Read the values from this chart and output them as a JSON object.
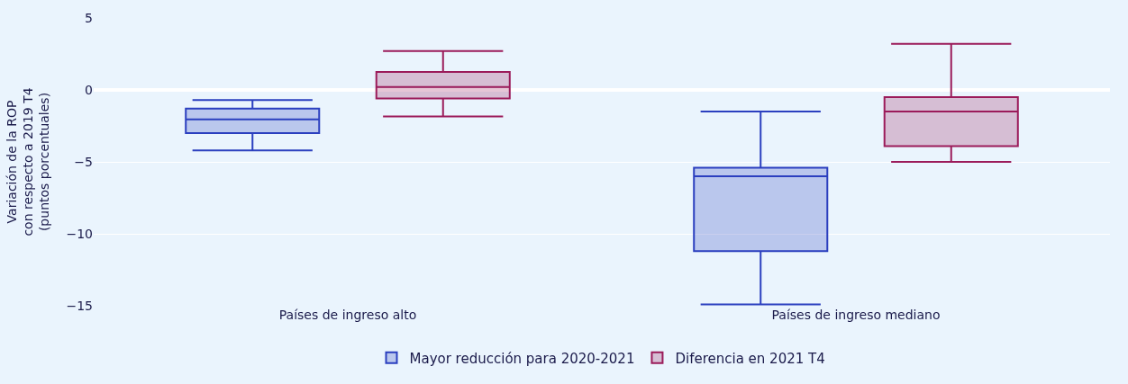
{
  "chart_data": {
    "type": "box",
    "ylabel": "Variación de la ROP\ncon respecto a 2019 T4\n(puntos porcentuales)",
    "categories": [
      "Países de ingreso alto",
      "Países de ingreso mediano"
    ],
    "series": [
      {
        "name": "Mayor reducción para 2020-2021",
        "color": "#2b3fbf",
        "boxes": [
          {
            "low": -4.2,
            "q1": -3.0,
            "median": -2.05,
            "q3": -1.3,
            "high": -0.7
          },
          {
            "low": -14.9,
            "q1": -11.2,
            "median": -6.0,
            "q3": -5.4,
            "high": -1.5
          }
        ]
      },
      {
        "name": "Diferencia en 2021 T4",
        "color": "#9b1b5a",
        "boxes": [
          {
            "low": -1.85,
            "q1": -0.6,
            "median": 0.2,
            "q3": 1.25,
            "high": 2.7
          },
          {
            "low": -5.0,
            "q1": -3.9,
            "median": -1.5,
            "q3": -0.5,
            "high": 3.2
          }
        ]
      }
    ],
    "ylim": [
      -15,
      5
    ],
    "yticks": [
      {
        "value": -15,
        "label": "−15"
      },
      {
        "value": -10,
        "label": "−10"
      },
      {
        "value": -5,
        "label": "−5"
      },
      0,
      5
    ],
    "grid": "y",
    "legend": "bottom"
  }
}
